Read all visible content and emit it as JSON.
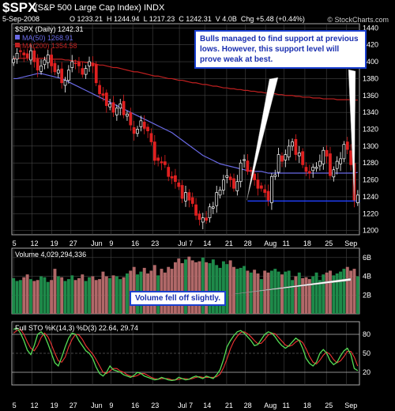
{
  "header": {
    "symbol": "$SPX",
    "name": "(S&P 500 Large Cap Index) INDX",
    "date": "5-Sep-2008",
    "ohlc": "O 1233.21  H 1244.94  L 1217.23  C 1242.31  V 4.0B  Chg +5.48 (+0.44%)",
    "chg_icon": "up-triangle-icon",
    "brand": "© StockCharts.com"
  },
  "price_panel": {
    "legend_title": "$SPX (Daily) 1242.31",
    "ma50_label": "MA(50) 1268.91",
    "ma200_label": "MA(200) 1354.58",
    "ma50_color": "#6a6ae6",
    "ma200_color": "#c02020",
    "support_color": "#2040ff",
    "y_ticks": [
      "1440",
      "1420",
      "1400",
      "1380",
      "1360",
      "1340",
      "1320",
      "1300",
      "1280",
      "1260",
      "1240",
      "1220",
      "1200"
    ]
  },
  "volume_panel": {
    "legend": "Volume 4,029,294,336",
    "y_ticks": [
      "6B",
      "4B",
      "2B"
    ]
  },
  "sto_panel": {
    "legend": "Full STO %K(14,3) %D(3) 22.64, 29.74",
    "y_ticks": [
      "80",
      "50",
      "20"
    ],
    "k_color": "#55dd55",
    "d_color": "#ee3333"
  },
  "x_axis": {
    "labels": [
      "5",
      "12",
      "19",
      "27",
      "Jun",
      "9",
      "16",
      "23",
      "Jul 7",
      "14",
      "21",
      "28",
      "Aug",
      "11",
      "18",
      "25",
      "Sep"
    ]
  },
  "annotations": {
    "support_note": "Bulls managed to find support at previous lows. However, this support level will prove weak at best.",
    "volume_note": "Volume fell off slightly."
  },
  "chart_data": {
    "type": "candlestick",
    "title": "$SPX (S&P 500 Large Cap Index) INDX",
    "ylim": [
      1195,
      1445
    ],
    "closes": [
      1403,
      1410,
      1412,
      1408,
      1405,
      1413,
      1400,
      1390,
      1395,
      1402,
      1408,
      1395,
      1388,
      1390,
      1375,
      1378,
      1390,
      1400,
      1398,
      1395,
      1385,
      1392,
      1400,
      1395,
      1375,
      1362,
      1360,
      1348,
      1350,
      1340,
      1345,
      1350,
      1337,
      1338,
      1325,
      1315,
      1320,
      1330,
      1321,
      1318,
      1305,
      1283,
      1283,
      1280,
      1278,
      1264,
      1262,
      1258,
      1252,
      1238,
      1245,
      1236,
      1232,
      1218,
      1213,
      1215,
      1212,
      1228,
      1228,
      1245,
      1248,
      1260,
      1265,
      1260,
      1250,
      1258,
      1280,
      1284,
      1270,
      1270,
      1260,
      1250,
      1250,
      1245,
      1236,
      1264,
      1266,
      1290,
      1282,
      1290,
      1300,
      1305,
      1290,
      1292,
      1278,
      1270,
      1268,
      1275,
      1275,
      1282,
      1295,
      1288,
      1265,
      1272,
      1282,
      1285,
      1302,
      1296,
      1278,
      1236,
      1242
    ],
    "ma50": [
      1380,
      1380,
      1381,
      1382,
      1383,
      1384,
      1385,
      1386,
      1386,
      1385,
      1384,
      1383,
      1382,
      1381,
      1380,
      1378,
      1376,
      1374,
      1372,
      1370,
      1368,
      1366,
      1364,
      1362,
      1360,
      1358,
      1356,
      1354,
      1352,
      1350,
      1348,
      1346,
      1344,
      1342,
      1340,
      1338,
      1336,
      1334,
      1332,
      1330,
      1328,
      1326,
      1324,
      1322,
      1320,
      1318,
      1316,
      1313,
      1310,
      1307,
      1304,
      1301,
      1298,
      1295,
      1292,
      1289,
      1287,
      1285,
      1283,
      1281,
      1279,
      1278,
      1277,
      1276,
      1275,
      1274,
      1273,
      1272,
      1271,
      1270,
      1270,
      1270,
      1270,
      1269,
      1268,
      1268,
      1268,
      1268,
      1268,
      1268,
      1268,
      1268,
      1268,
      1268,
      1268,
      1268,
      1268,
      1268,
      1268,
      1268,
      1268,
      1268,
      1268,
      1268,
      1268,
      1268,
      1268,
      1268,
      1268,
      1268,
      1268.91
    ],
    "ma200": [
      1404,
      1404,
      1404,
      1404,
      1404,
      1404,
      1404,
      1404,
      1404,
      1404,
      1404,
      1403,
      1403,
      1403,
      1403,
      1402,
      1402,
      1401,
      1401,
      1400,
      1400,
      1399,
      1399,
      1398,
      1397,
      1396,
      1396,
      1395,
      1394,
      1393,
      1393,
      1392,
      1391,
      1390,
      1389,
      1388,
      1388,
      1387,
      1386,
      1385,
      1384,
      1383,
      1383,
      1382,
      1381,
      1380,
      1380,
      1379,
      1378,
      1378,
      1377,
      1376,
      1375,
      1375,
      1374,
      1373,
      1373,
      1372,
      1371,
      1371,
      1370,
      1369,
      1369,
      1368,
      1368,
      1367,
      1367,
      1366,
      1366,
      1365,
      1365,
      1364,
      1364,
      1363,
      1363,
      1362,
      1362,
      1361,
      1361,
      1360,
      1360,
      1360,
      1359,
      1359,
      1358,
      1358,
      1358,
      1357,
      1357,
      1357,
      1356,
      1356,
      1356,
      1356,
      1355,
      1355,
      1355,
      1355,
      1355,
      1354.6,
      1354.58
    ],
    "support_level": 1235,
    "volume": [
      3.8,
      3.5,
      3.6,
      3.9,
      4.2,
      3.7,
      3.5,
      3.6,
      4.0,
      3.9,
      3.4,
      3.6,
      4.8,
      4.0,
      3.9,
      3.5,
      3.7,
      4.1,
      3.6,
      3.8,
      4.2,
      3.5,
      3.9,
      4.0,
      3.6,
      3.7,
      4.5,
      4.0,
      3.8,
      4.1,
      4.0,
      3.7,
      3.9,
      4.3,
      4.6,
      5.0,
      4.2,
      4.5,
      4.9,
      4.3,
      4.6,
      5.2,
      4.1,
      4.8,
      4.4,
      5.0,
      4.8,
      5.5,
      5.9,
      5.4,
      5.8,
      6.1,
      5.7,
      5.5,
      5.6,
      6.0,
      5.5,
      5.4,
      5.8,
      5.2,
      4.9,
      5.6,
      5.3,
      5.7,
      5.0,
      4.8,
      4.9,
      5.1,
      4.6,
      4.4,
      4.7,
      4.3,
      3.7,
      4.6,
      4.4,
      4.6,
      4.8,
      4.5,
      4.2,
      4.5,
      4.6,
      3.6,
      4.0,
      4.4,
      3.8,
      3.9,
      3.7,
      4.0,
      4.4,
      3.6,
      4.2,
      4.4,
      4.6,
      4.1,
      4.3,
      4.5,
      4.8,
      5.0,
      4.6,
      4.8,
      4.0
    ],
    "sto_k": [
      88,
      90,
      82,
      70,
      55,
      48,
      62,
      80,
      84,
      78,
      65,
      50,
      35,
      30,
      44,
      60,
      74,
      82,
      80,
      70,
      62,
      54,
      50,
      42,
      28,
      18,
      14,
      20,
      30,
      24,
      22,
      20,
      16,
      14,
      12,
      15,
      20,
      18,
      14,
      12,
      10,
      8,
      9,
      12,
      10,
      8,
      7,
      8,
      12,
      10,
      8,
      9,
      12,
      14,
      12,
      10,
      14,
      12,
      10,
      16,
      24,
      40,
      60,
      70,
      78,
      84,
      86,
      82,
      76,
      70,
      62,
      64,
      72,
      80,
      84,
      82,
      76,
      68,
      62,
      58,
      62,
      68,
      74,
      70,
      58,
      42,
      34,
      30,
      36,
      50,
      56,
      50,
      38,
      32,
      36,
      46,
      54,
      58,
      48,
      26,
      22.64
    ],
    "sto_d": [
      82,
      86,
      88,
      80,
      68,
      58,
      54,
      62,
      75,
      82,
      76,
      64,
      50,
      38,
      36,
      44,
      60,
      72,
      80,
      79,
      72,
      62,
      55,
      49,
      40,
      30,
      20,
      18,
      22,
      26,
      26,
      22,
      20,
      16,
      14,
      13,
      15,
      18,
      18,
      15,
      12,
      10,
      9,
      10,
      10,
      10,
      8,
      8,
      9,
      10,
      10,
      9,
      10,
      12,
      13,
      12,
      12,
      12,
      12,
      13,
      17,
      27,
      41,
      57,
      69,
      77,
      83,
      84,
      81,
      76,
      70,
      65,
      66,
      72,
      79,
      82,
      81,
      75,
      69,
      63,
      61,
      63,
      68,
      71,
      67,
      57,
      45,
      36,
      33,
      39,
      47,
      52,
      48,
      40,
      35,
      38,
      45,
      53,
      53,
      44,
      29.74
    ]
  }
}
